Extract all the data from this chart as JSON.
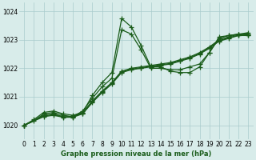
{
  "title": "Graphe pression niveau de la mer (hPa)",
  "bg_color": "#d8ecea",
  "grid_color": "#aacccc",
  "line_color": "#1a5c1a",
  "xlim": [
    -0.5,
    23.5
  ],
  "ylim": [
    1019.5,
    1024.3
  ],
  "yticks": [
    1020,
    1021,
    1022,
    1023,
    1024
  ],
  "xticks": [
    0,
    1,
    2,
    3,
    4,
    5,
    6,
    7,
    8,
    9,
    10,
    11,
    12,
    13,
    14,
    15,
    16,
    17,
    18,
    19,
    20,
    21,
    22,
    23
  ],
  "series": [
    {
      "x": [
        0,
        1,
        2,
        3,
        4,
        5,
        6,
        7,
        8,
        9,
        10,
        11,
        12,
        13,
        14,
        15,
        16,
        17,
        18,
        19,
        20,
        21,
        22,
        23
      ],
      "y": [
        1020.0,
        1020.2,
        1020.45,
        1020.5,
        1020.4,
        1020.35,
        1020.45,
        1021.05,
        1021.5,
        1021.85,
        1023.75,
        1023.45,
        1022.8,
        1022.05,
        1022.05,
        1021.9,
        1021.85,
        1021.85,
        1022.05,
        1022.55,
        1023.05,
        1023.15,
        1023.2,
        1023.25
      ]
    },
    {
      "x": [
        0,
        1,
        2,
        3,
        4,
        5,
        6,
        7,
        8,
        9,
        10,
        11,
        12,
        13,
        14,
        15,
        16,
        17,
        18,
        19,
        20,
        21,
        22,
        23
      ],
      "y": [
        1020.0,
        1020.15,
        1020.4,
        1020.45,
        1020.35,
        1020.3,
        1020.5,
        1020.95,
        1021.35,
        1021.65,
        1023.35,
        1023.2,
        1022.65,
        1022.0,
        1022.0,
        1021.95,
        1021.95,
        1022.05,
        1022.15,
        1022.55,
        1023.1,
        1023.15,
        1023.2,
        1023.2
      ]
    },
    {
      "x": [
        0,
        2,
        3,
        4,
        5,
        6,
        7,
        8,
        9,
        10,
        11,
        12,
        13,
        14,
        15,
        16,
        17,
        18,
        19,
        20,
        21,
        22,
        23
      ],
      "y": [
        1020.0,
        1020.35,
        1020.4,
        1020.3,
        1020.3,
        1020.45,
        1020.85,
        1021.2,
        1021.5,
        1021.9,
        1022.0,
        1022.05,
        1022.1,
        1022.15,
        1022.2,
        1022.3,
        1022.4,
        1022.55,
        1022.75,
        1023.0,
        1023.1,
        1023.2,
        1023.2
      ]
    },
    {
      "x": [
        0,
        2,
        3,
        4,
        5,
        6,
        7,
        8,
        9,
        10,
        11,
        12,
        13,
        14,
        15,
        16,
        17,
        18,
        19,
        20,
        21,
        22,
        23
      ],
      "y": [
        1020.0,
        1020.3,
        1020.35,
        1020.28,
        1020.28,
        1020.4,
        1020.8,
        1021.15,
        1021.45,
        1021.85,
        1021.95,
        1022.0,
        1022.05,
        1022.1,
        1022.15,
        1022.25,
        1022.35,
        1022.5,
        1022.7,
        1022.95,
        1023.05,
        1023.15,
        1023.15
      ]
    },
    {
      "x": [
        0,
        2,
        3,
        4,
        5,
        6,
        7,
        8,
        9,
        10,
        11,
        12,
        13,
        14,
        15,
        16,
        17,
        18,
        19,
        20,
        21,
        22,
        23
      ],
      "y": [
        1020.0,
        1020.32,
        1020.38,
        1020.29,
        1020.3,
        1020.42,
        1020.82,
        1021.18,
        1021.48,
        1021.87,
        1021.97,
        1022.02,
        1022.07,
        1022.12,
        1022.17,
        1022.27,
        1022.37,
        1022.52,
        1022.72,
        1022.97,
        1023.07,
        1023.17,
        1023.17
      ]
    }
  ],
  "marker": "+",
  "markersize": 4,
  "linewidth": 0.9,
  "label_fontsize": 6,
  "tick_fontsize": 5.5
}
